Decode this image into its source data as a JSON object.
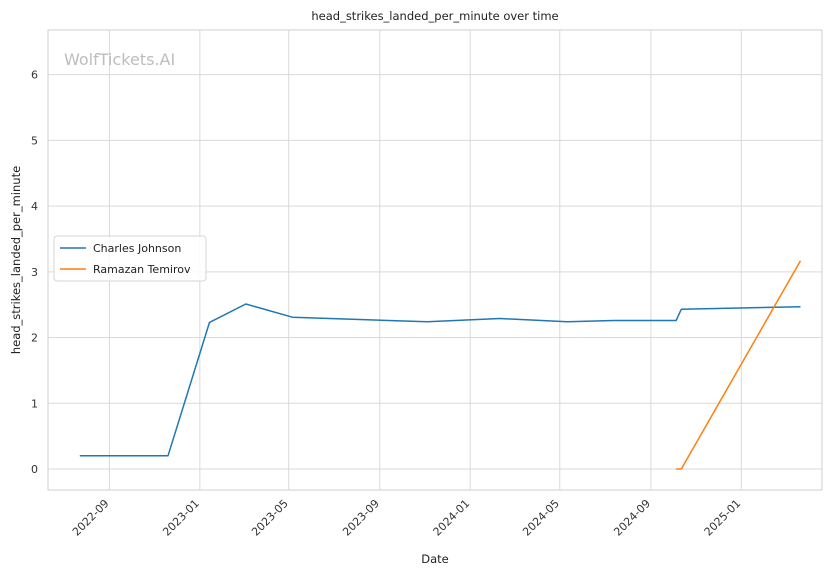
{
  "watermark": "WolfTickets.AI",
  "chart_data": {
    "type": "line",
    "title": "head_strikes_landed_per_minute over time",
    "xlabel": "Date",
    "ylabel": "head_strikes_landed_per_minute",
    "x_ticks": [
      "2022-09",
      "2023-01",
      "2023-05",
      "2023-09",
      "2024-01",
      "2024-05",
      "2024-09",
      "2025-01"
    ],
    "y_ticks": [
      0,
      1,
      2,
      3,
      4,
      5,
      6
    ],
    "xlim": [
      "2022-06-10",
      "2025-04-20"
    ],
    "ylim": [
      -0.32,
      6.68
    ],
    "grid": true,
    "legend_position": "center-left",
    "series": [
      {
        "name": "Charles Johnson",
        "color": "#1f77b4",
        "points": [
          {
            "x": "2022-07-23",
            "y": 0.2
          },
          {
            "x": "2022-11-19",
            "y": 0.2
          },
          {
            "x": "2023-01-14",
            "y": 2.23
          },
          {
            "x": "2023-03-04",
            "y": 2.51
          },
          {
            "x": "2023-05-06",
            "y": 2.31
          },
          {
            "x": "2023-11-04",
            "y": 2.24
          },
          {
            "x": "2024-02-10",
            "y": 2.29
          },
          {
            "x": "2024-05-11",
            "y": 2.24
          },
          {
            "x": "2024-07-13",
            "y": 2.26
          },
          {
            "x": "2024-10-05",
            "y": 2.26
          },
          {
            "x": "2024-10-12",
            "y": 2.43
          },
          {
            "x": "2025-03-22",
            "y": 2.47
          }
        ]
      },
      {
        "name": "Ramazan Temirov",
        "color": "#ff7f0e",
        "points": [
          {
            "x": "2024-10-05",
            "y": 0
          },
          {
            "x": "2024-10-12",
            "y": 0
          },
          {
            "x": "2025-03-22",
            "y": 3.17
          }
        ]
      }
    ]
  }
}
